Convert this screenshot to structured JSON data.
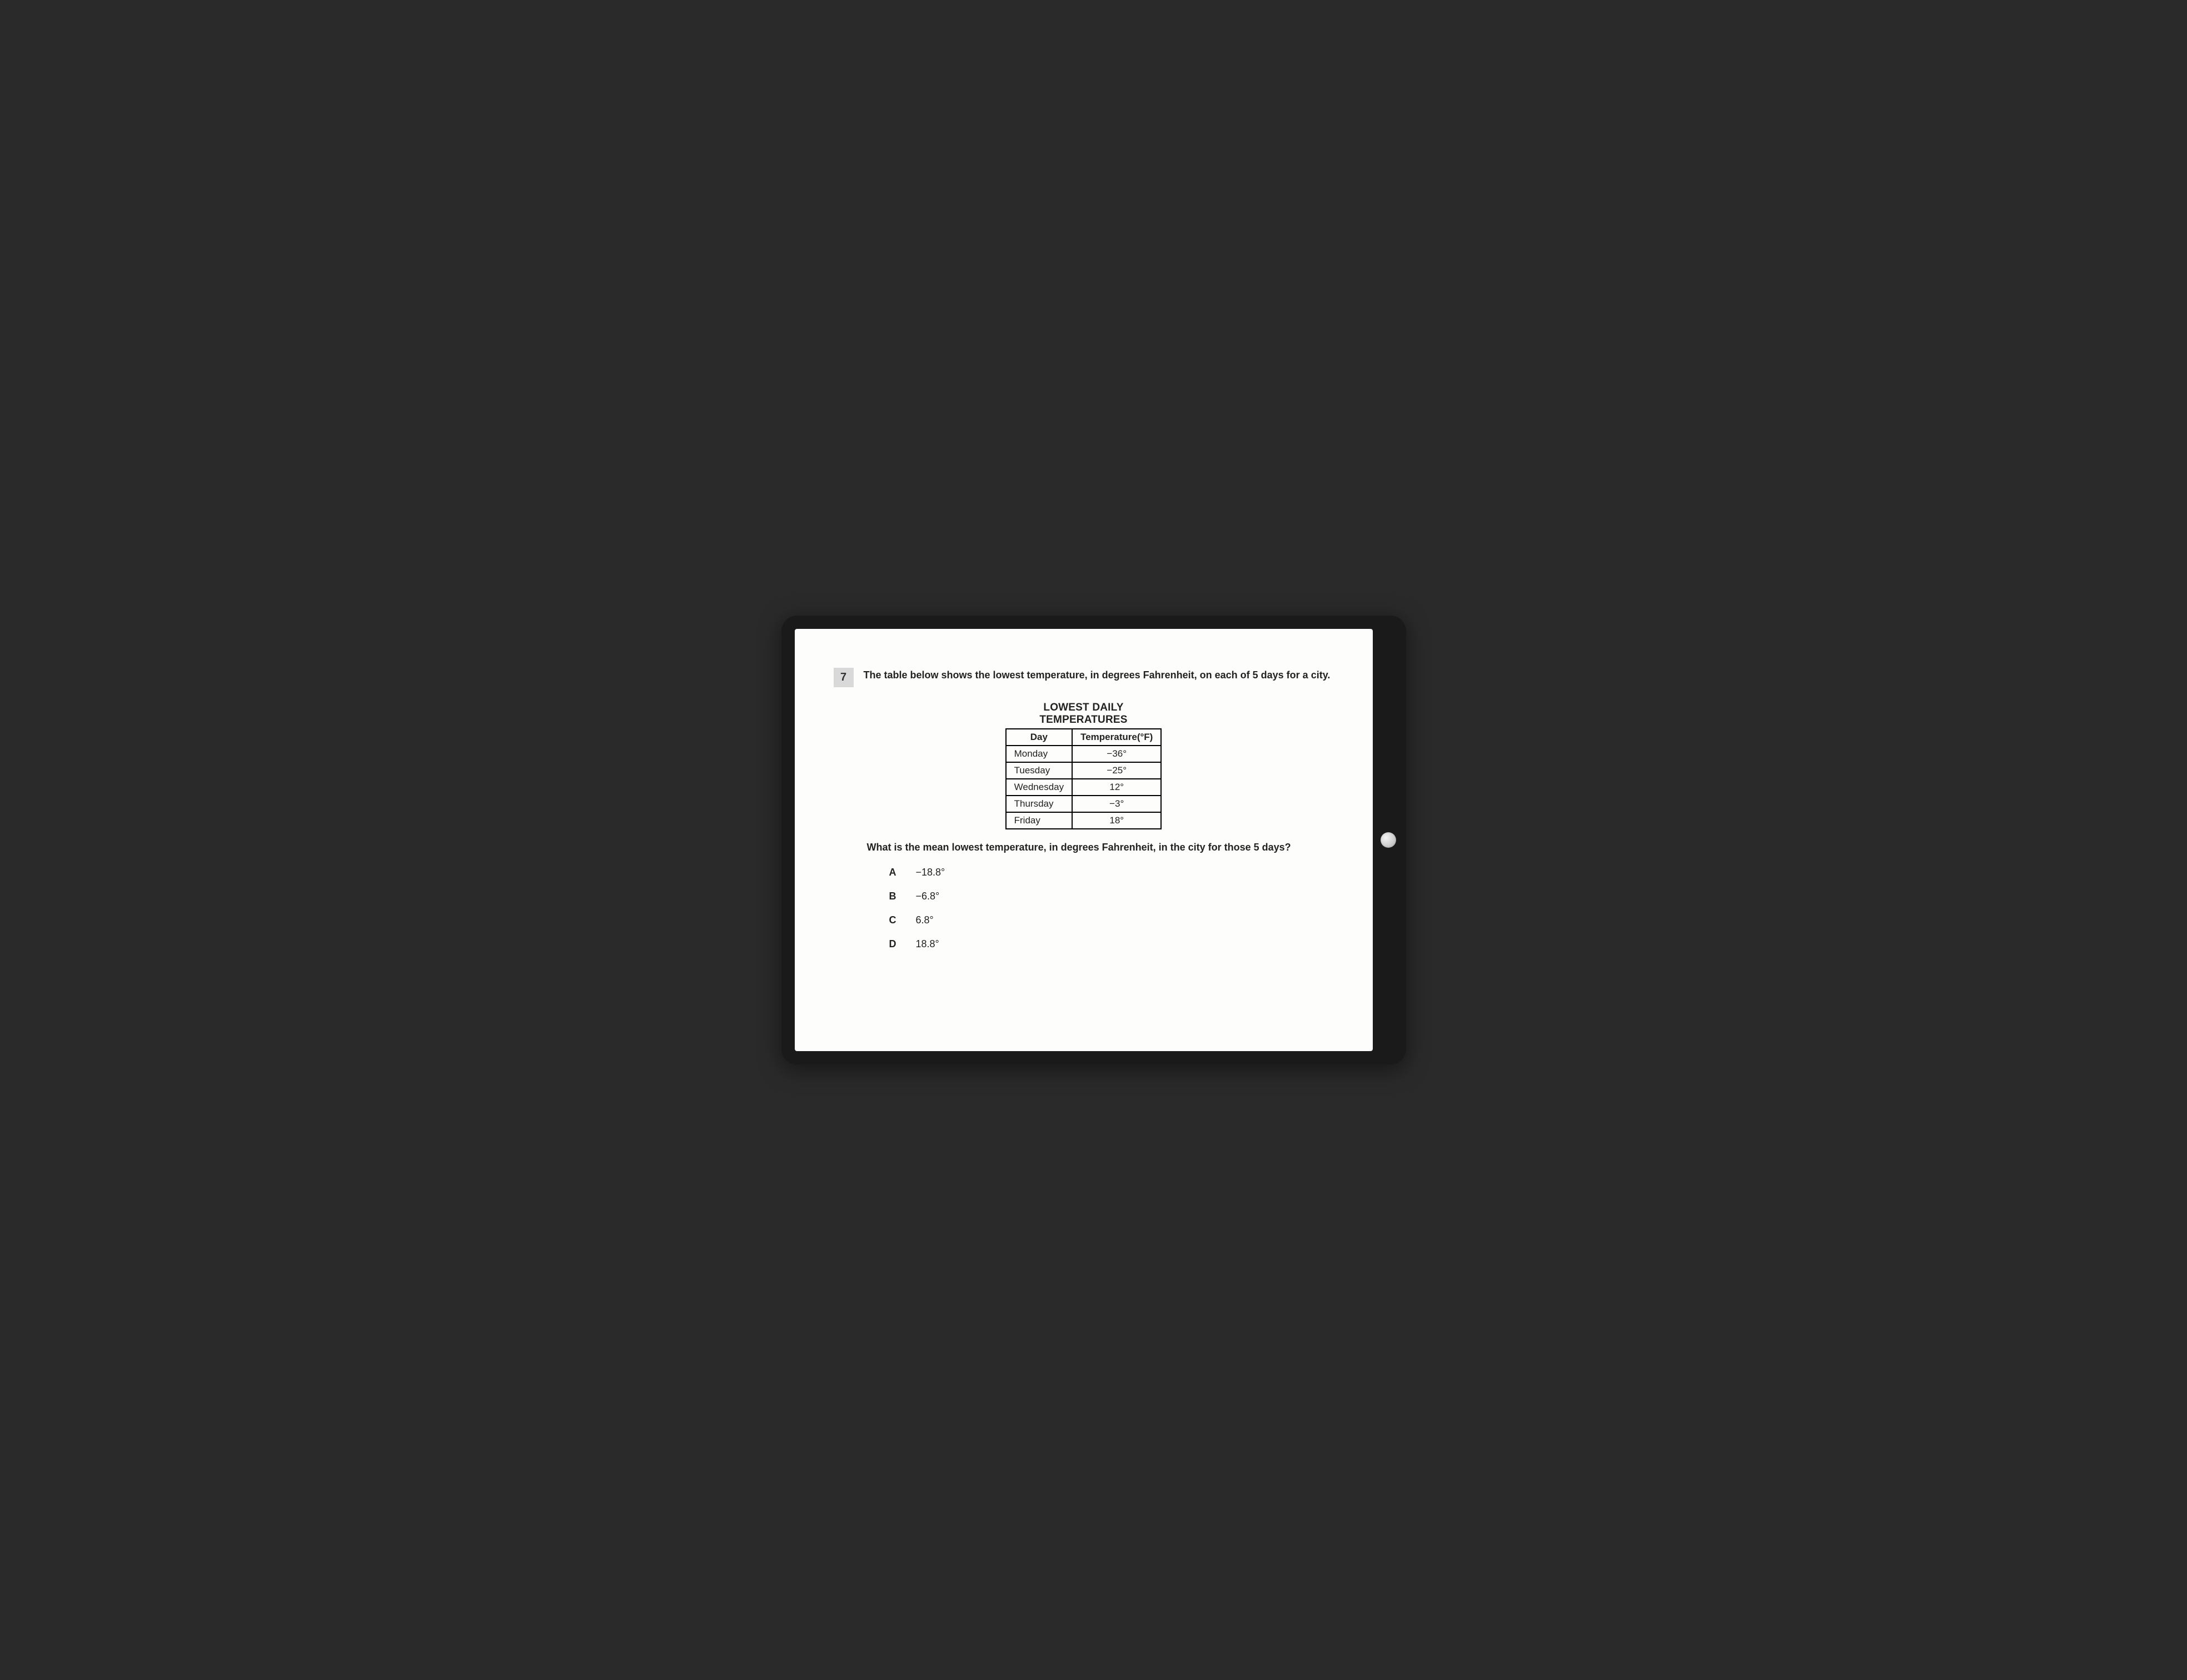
{
  "question_number": "7",
  "stem": "The table below shows the lowest temperature, in degrees Fahrenheit, on each of 5 days for a city.",
  "table": {
    "title_line1": "LOWEST DAILY",
    "title_line2": "TEMPERATURES",
    "columns": [
      "Day",
      "Temperature(°F)"
    ],
    "rows": [
      [
        "Monday",
        "−36°"
      ],
      [
        "Tuesday",
        "−25°"
      ],
      [
        "Wednesday",
        "12°"
      ],
      [
        "Thursday",
        "−3°"
      ],
      [
        "Friday",
        "18°"
      ]
    ],
    "border_color": "#000000",
    "background_color": "#fdfdfb"
  },
  "question_line": "What is the mean lowest temperature, in degrees Fahrenheit, in the city for those 5 days?",
  "choices": [
    {
      "label": "A",
      "value": "−18.8°"
    },
    {
      "label": "B",
      "value": "−6.8°"
    },
    {
      "label": "C",
      "value": "6.8°"
    },
    {
      "label": "D",
      "value": "18.8°"
    }
  ],
  "colors": {
    "page_bg": "#fdfdfb",
    "qnum_bg": "#d9d9d9",
    "text": "#222222",
    "frame": "#1a1a1a"
  },
  "typography": {
    "font_family": "Segoe UI / Arial",
    "stem_fontsize_pt": 14,
    "table_title_fontsize_pt": 14,
    "cell_fontsize_pt": 13,
    "choice_fontsize_pt": 13
  }
}
